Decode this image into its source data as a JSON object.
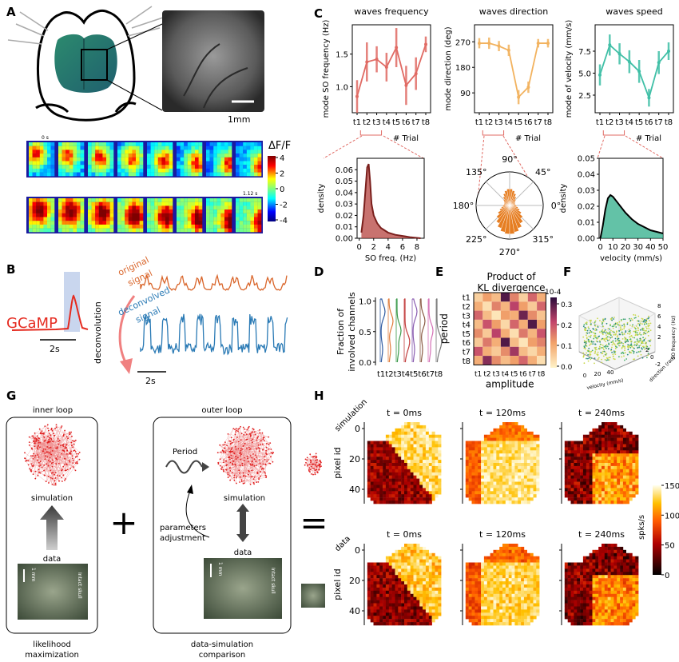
{
  "panels": {
    "A": "A",
    "B": "B",
    "C": "C",
    "D": "D",
    "E": "E",
    "F": "F",
    "G": "G",
    "H": "H"
  },
  "panel_a": {
    "scale_bar": "1mm",
    "t_start": "0 s",
    "t_end": "1.12 s",
    "colorbar": {
      "label": "ΔF/F",
      "ticks": [
        "4",
        "2",
        "0",
        "-2",
        "-4"
      ]
    }
  },
  "panel_b": {
    "gcamp": "GCaMP",
    "time_bar": "2s",
    "deconvolution": "deconvolution",
    "original_line1": "original",
    "original_line2": "signal",
    "deconvolved_line1": "deconvolved",
    "deconvolved_line2": "signal",
    "time_bar2": "2s"
  },
  "panel_c": {
    "titles": [
      "waves frequency",
      "waves direction",
      "waves speed"
    ],
    "ylabels": [
      "mode SO frequency (Hz)",
      "mode direction (deg)",
      "mode of velocity (mm/s)"
    ],
    "xlabel": "# Trial",
    "trials": [
      "t1",
      "t2",
      "t3",
      "t4",
      "t5",
      "t6",
      "t7",
      "t8"
    ],
    "freq_yticks": [
      "1.5",
      "1.0"
    ],
    "dir_yticks": [
      "270",
      "180",
      "90"
    ],
    "vel_yticks": [
      "7.5",
      "5.0",
      "2.5"
    ],
    "hist1": {
      "ylabel": "density",
      "xlabel": "SO freq. (Hz)",
      "yticks": [
        "0.06",
        "0.05",
        "0.04",
        "0.03",
        "0.02",
        "0.01",
        "0.00"
      ],
      "xticks": [
        "0",
        "2",
        "4",
        "6",
        "8"
      ]
    },
    "polar": {
      "angles": [
        "90°",
        "45°",
        "0°",
        "315°",
        "270°",
        "225°",
        "180°",
        "135°"
      ]
    },
    "hist3": {
      "ylabel": "density",
      "xlabel": "velocity (mm/s)",
      "yticks": [
        "0.05",
        "0.04",
        "0.03",
        "0.02",
        "0.01",
        "0.00"
      ],
      "xticks": [
        "0",
        "10",
        "20",
        "30",
        "40",
        "50"
      ]
    }
  },
  "chart_data": [
    {
      "type": "line",
      "x": [
        "t1",
        "t2",
        "t3",
        "t4",
        "t5",
        "t6",
        "t7",
        "t8"
      ],
      "values": [
        0.85,
        1.38,
        1.42,
        1.3,
        1.6,
        1.02,
        1.2,
        1.65
      ],
      "ylim": [
        0.6,
        1.95
      ],
      "ylabel": "mode SO frequency (Hz)",
      "title": "waves frequency",
      "color": "#e06a63"
    },
    {
      "type": "line",
      "x": [
        "t1",
        "t2",
        "t3",
        "t4",
        "t5",
        "t6",
        "t7",
        "t8"
      ],
      "values": [
        265,
        265,
        255,
        240,
        75,
        110,
        265,
        265
      ],
      "ylim": [
        20,
        330
      ],
      "ylabel": "mode direction (deg)",
      "title": "waves direction",
      "color": "#f2b25e"
    },
    {
      "type": "line",
      "x": [
        "t1",
        "t2",
        "t3",
        "t4",
        "t5",
        "t6",
        "t7",
        "t8"
      ],
      "values": [
        4.8,
        8.2,
        7.2,
        6.3,
        5.2,
        2.2,
        6.2,
        7.5
      ],
      "ylim": [
        0.5,
        10.5
      ],
      "ylabel": "mode of velocity (mm/s)",
      "title": "waves speed",
      "color": "#3fbfa6"
    },
    {
      "type": "area",
      "title": "",
      "xlabel": "SO freq. (Hz)",
      "ylabel": "density",
      "xlim": [
        -0.3,
        9
      ],
      "ylim": [
        0,
        0.07
      ],
      "x": [
        0.3,
        0.6,
        0.9,
        1.1,
        1.3,
        1.5,
        1.7,
        2.0,
        2.5,
        3,
        4,
        5,
        6,
        7,
        8.5
      ],
      "values": [
        0.005,
        0.02,
        0.045,
        0.062,
        0.065,
        0.05,
        0.03,
        0.02,
        0.013,
        0.009,
        0.005,
        0.003,
        0.002,
        0.001,
        0.0
      ],
      "color": "#b5433f"
    },
    {
      "type": "area",
      "title": "",
      "xlabel": "velocity (mm/s)",
      "ylabel": "density",
      "xlim": [
        -1,
        50
      ],
      "ylim": [
        0,
        0.05
      ],
      "x": [
        0,
        2,
        4,
        6,
        8,
        10,
        15,
        20,
        25,
        30,
        35,
        40,
        45,
        50
      ],
      "values": [
        0.0,
        0.008,
        0.018,
        0.025,
        0.027,
        0.026,
        0.021,
        0.016,
        0.012,
        0.009,
        0.007,
        0.005,
        0.004,
        0.003
      ],
      "color": "#2fae8a"
    },
    {
      "type": "heatmap",
      "title": "Product of KL divergence",
      "xlabel": "amplitude",
      "ylabel": "period",
      "categories": [
        "t1",
        "t2",
        "t3",
        "t4",
        "t5",
        "t6",
        "t7",
        "t8"
      ],
      "colorbar": {
        "label": "10-4",
        "ticks": [
          "0.3",
          "0.2",
          "0.1",
          "0.0"
        ]
      },
      "values": [
        [
          0.05,
          0.12,
          0.08,
          0.3,
          0.15,
          0.05,
          0.18,
          0.1
        ],
        [
          0.1,
          0.03,
          0.15,
          0.09,
          0.22,
          0.12,
          0.06,
          0.18
        ],
        [
          0.18,
          0.08,
          0.02,
          0.12,
          0.1,
          0.28,
          0.14,
          0.07
        ],
        [
          0.08,
          0.2,
          0.12,
          0.04,
          0.18,
          0.1,
          0.3,
          0.12
        ],
        [
          0.14,
          0.06,
          0.22,
          0.1,
          0.03,
          0.16,
          0.09,
          0.2
        ],
        [
          0.06,
          0.16,
          0.1,
          0.3,
          0.08,
          0.02,
          0.12,
          0.15
        ],
        [
          0.2,
          0.1,
          0.06,
          0.14,
          0.24,
          0.08,
          0.04,
          0.1
        ],
        [
          0.1,
          0.26,
          0.14,
          0.08,
          0.12,
          0.18,
          0.1,
          0.03
        ]
      ]
    }
  ],
  "panel_d": {
    "ylabel_line1": "Fraction of",
    "ylabel_line2": "involved channels",
    "yticks": [
      "1.0",
      "0.5",
      "0.0"
    ],
    "xticks": "t1t2t3t4t5t6t7t8"
  },
  "panel_e": {
    "title_line1": "Product of",
    "title_line2": "KL divergence",
    "exp": "10-4"
  },
  "panel_f": {
    "xlabel": "velocity (mm/s)",
    "ylabel": "direction (rad)",
    "zlabel": "SO frequency (Hz)",
    "zticks": [
      "8",
      "6",
      "4",
      "2"
    ],
    "xticks": [
      "0",
      "20",
      "40"
    ],
    "yticks": [
      "2",
      "0",
      "-2"
    ]
  },
  "panel_g": {
    "inner_title": "inner loop",
    "outer_title": "outer loop",
    "simulation": "simulation",
    "data": "data",
    "period": "Period",
    "params_line1": "parameters",
    "params_line2": "adjustment",
    "scale": "1 mm",
    "skull": "Intact skull",
    "likelihood_line1": "likelihood",
    "likelihood_line2": "maximization",
    "comparison_line1": "data-simulation",
    "comparison_line2": "comparison",
    "plus": "+",
    "equals": "="
  },
  "panel_h": {
    "row_labels": [
      "simulation",
      "data"
    ],
    "titles": [
      "t = 0ms",
      "t = 120ms",
      "t = 240ms"
    ],
    "ylabel": "pixel id",
    "yticks": [
      "0",
      "20",
      "40"
    ],
    "colorbar": {
      "label": "spks/s",
      "ticks": [
        "150",
        "100",
        "50",
        "0"
      ]
    }
  }
}
